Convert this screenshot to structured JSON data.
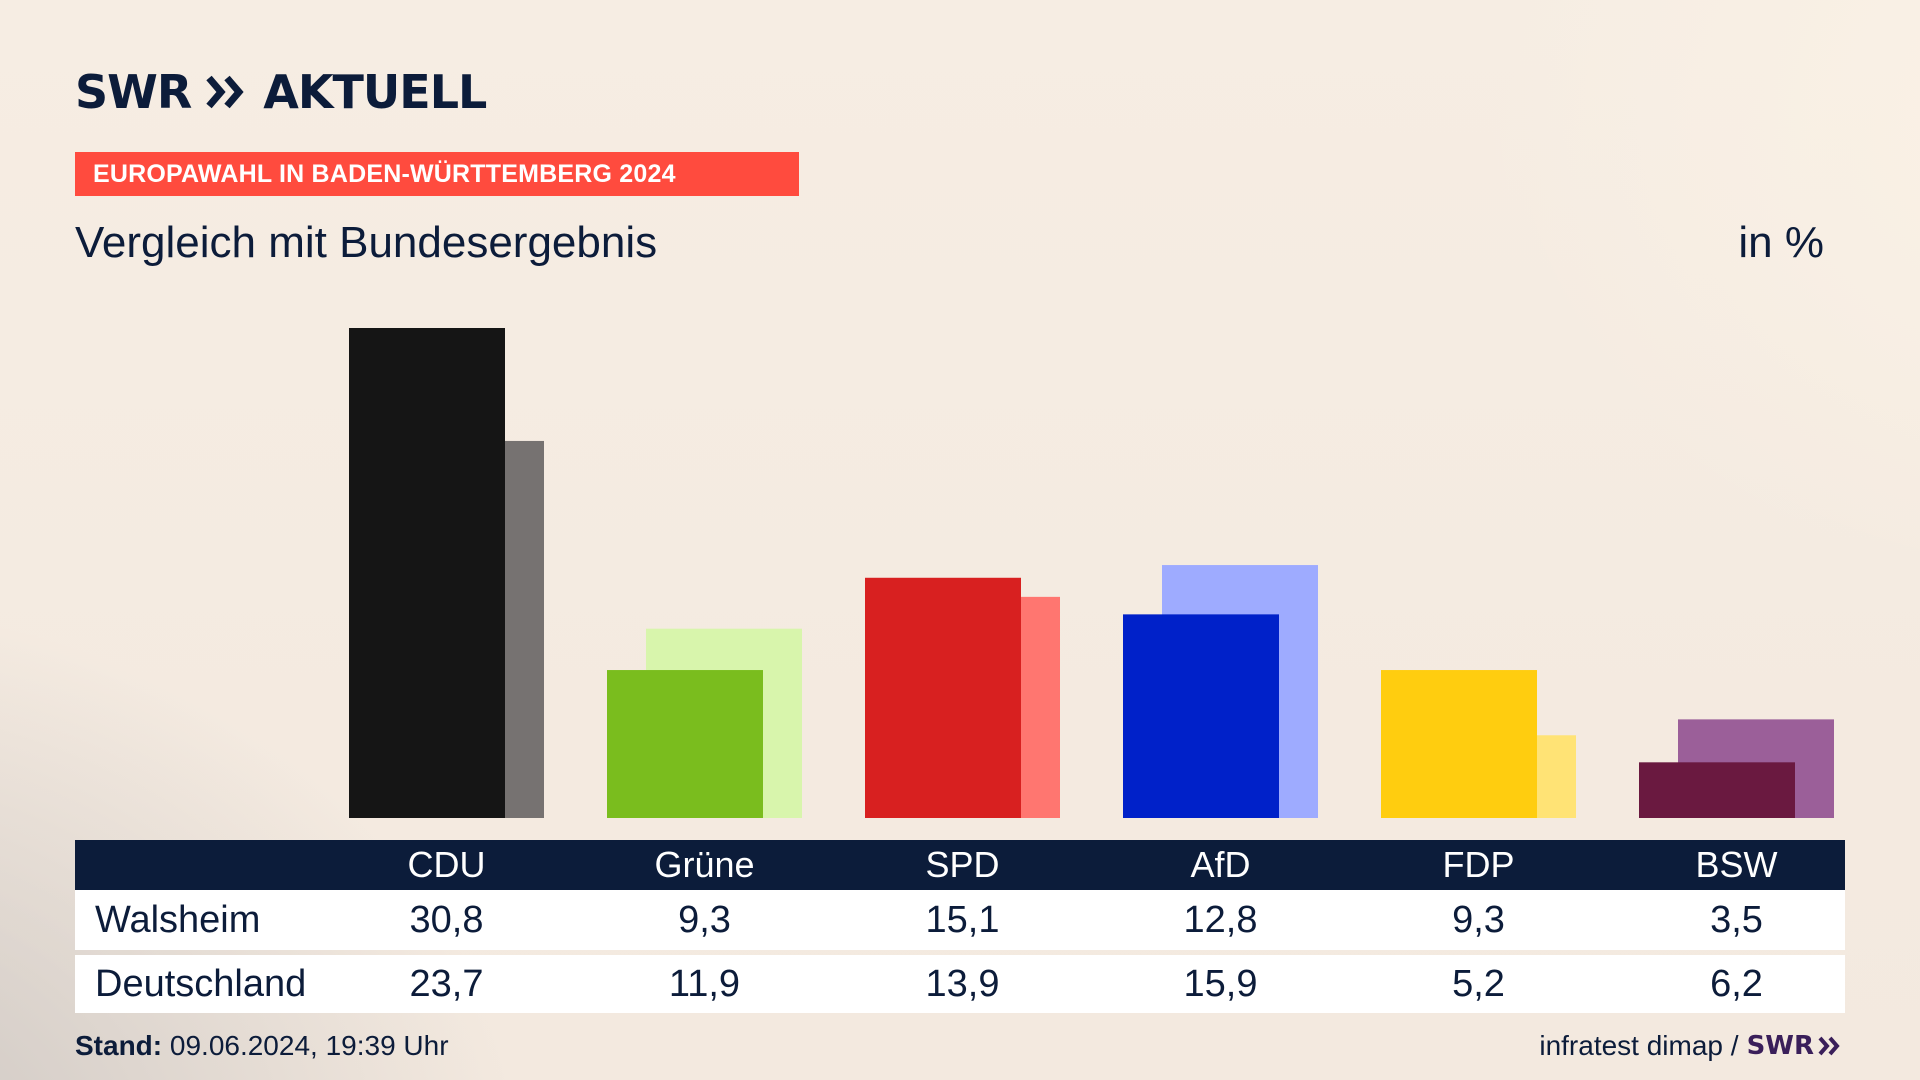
{
  "brand": {
    "name": "SWR",
    "product": "AKTUELL"
  },
  "banner": "EUROPAWAHL IN BADEN-WÜRTTEMBERG 2024",
  "subtitle": "Vergleich mit Bundesergebnis",
  "unit": "in %",
  "footer": {
    "stand_label": "Stand:",
    "stand_value": "09.06.2024, 19:39 Uhr",
    "source": "infratest dimap /",
    "source_brand": "SWR"
  },
  "chart_data": {
    "type": "bar",
    "categories": [
      "CDU",
      "Grüne",
      "SPD",
      "AfD",
      "FDP",
      "BSW"
    ],
    "series": [
      {
        "name": "Walsheim",
        "values": [
          30.8,
          9.3,
          15.1,
          12.8,
          9.3,
          3.5
        ]
      },
      {
        "name": "Deutschland",
        "values": [
          23.7,
          11.9,
          13.9,
          15.9,
          5.2,
          6.2
        ]
      }
    ],
    "value_labels": {
      "Walsheim": [
        "30,8",
        "9,3",
        "15,1",
        "12,8",
        "9,3",
        "3,5"
      ],
      "Deutschland": [
        "23,7",
        "11,9",
        "13,9",
        "15,9",
        "5,2",
        "6,2"
      ]
    },
    "colors": {
      "Walsheim": [
        "#151515",
        "#7abd1e",
        "#d82020",
        "#0021c9",
        "#ffcd0f",
        "#6a1940"
      ],
      "Deutschland": [
        "#767271",
        "#d8f5ac",
        "#ff7670",
        "#9eabff",
        "#ffe375",
        "#9b5f99"
      ]
    },
    "ylim": [
      0,
      30.8
    ],
    "grid": false,
    "legend": "table-below"
  },
  "colors": {
    "header_bg": "#0c1c3a",
    "banner_bg": "#ff4b3e"
  }
}
